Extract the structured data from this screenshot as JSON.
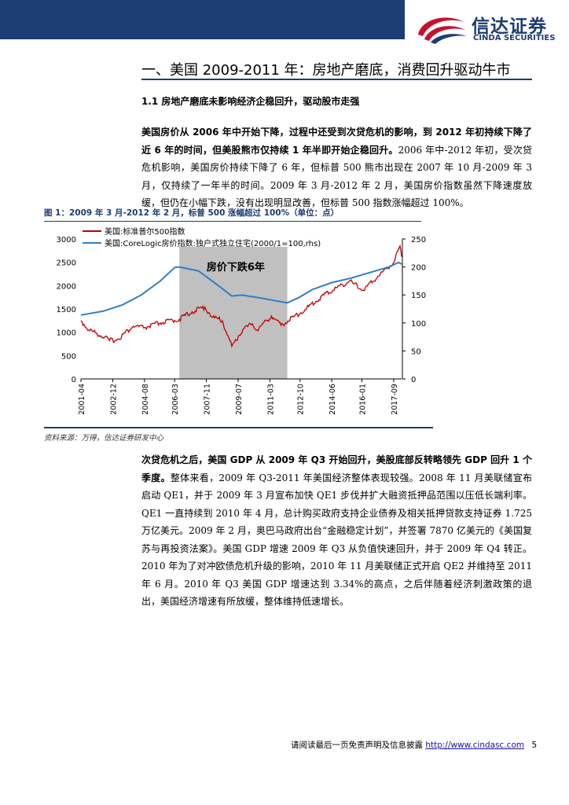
{
  "header": {
    "brand_cn": "信达证券",
    "brand_en": "CINDA SECURITIES",
    "colors": {
      "navy": "#1b3d73",
      "red": "#c8102e"
    }
  },
  "section_title": "一、美国 2009-2011 年：房地产磨底，消费回升驱动牛市",
  "subsection_title": "1.1 房地产磨底未影响经济企稳回升，驱动股市走强",
  "paragraph1": {
    "bold": "美国房价从 2006 年中开始下降，过程中还受到次贷危机的影响，到 2012 年初持续下降了近 6 年的时间，但美股熊市仅持续 1 年半即开始企稳回升。",
    "normal": "2006 年中-2012 年初，受次贷危机影响，美国房价持续下降了 6 年，但标普 500 熊市出现在 2007 年 10 月-2009 年 3 月，仅持续了一年半的时间。2009 年 3 月-2012 年 2 月，美国房价指数虽然下降速度放缓，但仍在小幅下跌，没有出现明显改善，但标普 500 指数涨幅超过 100%。"
  },
  "figure": {
    "title": "图 1：2009 年 3 月-2012 年 2 月，标普 500 涨幅超过 100%（单位：点）",
    "source": "资料来源：万得，信达证券研发中心"
  },
  "chart_data": {
    "type": "line",
    "legend": [
      "美国:标准普尔500指数",
      "美国:CoreLogic房价指数:独户式独立住宅(2000/1=100,rhs)"
    ],
    "legend_placement": "top-left",
    "annotation": "房价下跌6年",
    "shaded_range": [
      "2006-06",
      "2012-02"
    ],
    "x_ticks": [
      "2001-04",
      "2002-12",
      "2004-08",
      "2006-03",
      "2007-11",
      "2009-07",
      "2011-03",
      "2012-10",
      "2014-06",
      "2016-01",
      "2017-09"
    ],
    "y_left": {
      "ticks": [
        "0",
        "500",
        "1000",
        "1500",
        "2000",
        "2500",
        "3000"
      ],
      "lim": [
        0,
        3000
      ]
    },
    "y_right": {
      "ticks": [
        "0",
        "50",
        "100",
        "150",
        "200",
        "250"
      ],
      "lim": [
        0,
        250
      ]
    },
    "series": [
      {
        "name": "美国:标准普尔500指数",
        "axis": "left",
        "color": "#c00000",
        "x": [
          "2001-04",
          "2001-09",
          "2002-07",
          "2002-10",
          "2003-03",
          "2004-01",
          "2004-08",
          "2005-06",
          "2006-06",
          "2007-02",
          "2007-10",
          "2008-03",
          "2008-09",
          "2009-03",
          "2009-10",
          "2010-04",
          "2010-07",
          "2011-04",
          "2011-10",
          "2012-06",
          "2013-01",
          "2014-01",
          "2015-05",
          "2016-02",
          "2016-11",
          "2017-09",
          "2018-01",
          "2018-02"
        ],
        "y": [
          1250,
          1050,
          900,
          820,
          850,
          1130,
          1100,
          1200,
          1280,
          1440,
          1540,
          1320,
          1250,
          700,
          1060,
          1180,
          1050,
          1350,
          1150,
          1330,
          1480,
          1800,
          2100,
          1900,
          2200,
          2500,
          2850,
          2620
        ]
      },
      {
        "name": "美国:CoreLogic房价指数:独户式独立住宅(2000/1=100,rhs)",
        "axis": "right",
        "color": "#2e7fc2",
        "x": [
          "2001-04",
          "2002-06",
          "2003-06",
          "2004-06",
          "2005-06",
          "2006-03",
          "2006-06",
          "2007-06",
          "2008-06",
          "2009-03",
          "2009-09",
          "2010-06",
          "2011-06",
          "2012-02",
          "2012-09",
          "2013-06",
          "2014-06",
          "2015-06",
          "2016-06",
          "2017-06",
          "2017-12",
          "2018-02"
        ],
        "y": [
          114,
          121,
          132,
          150,
          175,
          199,
          200,
          193,
          168,
          148,
          150,
          146,
          140,
          136,
          145,
          160,
          172,
          180,
          190,
          200,
          208,
          205
        ]
      }
    ]
  },
  "paragraph2": {
    "bold": "次贷危机之后，美国 GDP 从 2009 年 Q3 开始回升，美股底部反转略领先 GDP 回升 1 个季度。",
    "normal": "整体来看，2009 年 Q3-2011 年美国经济整体表现较强。2008 年 11 月美联储宣布启动 QE1，并于 2009 年 3 月宣布加快 QE1 步伐并扩大融资抵押品范围以压低长端利率。QE1 一直持续到 2010 年 4 月，总计购买政府支持企业债券及相关抵押贷款支持证券 1.725 万亿美元。2009 年 2 月，奥巴马政府出台“金融稳定计划”，并签署 7870 亿美元的《美国复苏与再投资法案》。美国 GDP 增速 2009 年 Q3 从负值快速回升，并于 2009 年 Q4 转正。2010 年为了对冲欧债危机升级的影响，2010 年 11 月美联储正式开启 QE2 并维持至 2011 年 6 月。2010 年 Q3 美国 GDP 增速达到 3.34%的高点，之后伴随着经济刺激政策的退出，美国经济增速有所放缓，整体维持低速增长。"
  },
  "footer": {
    "disclaimer": "请阅读最后一页免责声明及信息披露",
    "url": "http://www.cindasc.com",
    "page": "5"
  }
}
